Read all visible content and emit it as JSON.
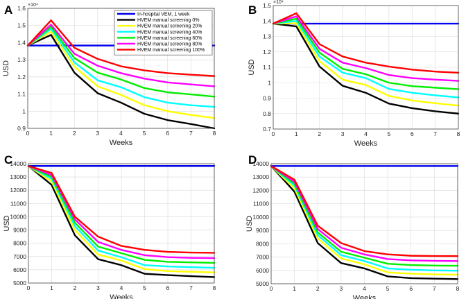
{
  "chart_data": [
    {
      "type": "line",
      "panel": "A",
      "xlabel": "Weeks",
      "ylabel": "USD",
      "exponent_label": "×10⁴",
      "x": [
        0,
        1,
        2,
        3,
        4,
        5,
        6,
        7,
        8
      ],
      "xlim": [
        0,
        8
      ],
      "xticks": [
        "0",
        "1",
        "2",
        "3",
        "4",
        "5",
        "6",
        "7",
        "8"
      ],
      "ylim": [
        0.9,
        1.6
      ],
      "yticks": [
        0.9,
        1,
        1.1,
        1.2,
        1.3,
        1.4,
        1.5,
        1.6
      ],
      "ytick_labels": [
        "0.9",
        "1",
        "1.1",
        "1.2",
        "1.3",
        "1.4",
        "1.5",
        "1.6"
      ],
      "legend": "top-right",
      "series": [
        {
          "name": "In-hospital VEM, 1 week",
          "color": "#0000ee",
          "values": [
            1.383,
            1.383,
            1.383,
            1.383,
            1.383,
            1.383,
            1.383,
            1.383,
            1.383
          ]
        },
        {
          "name": "HVEM manual screening 0%",
          "color": "#000000",
          "values": [
            1.383,
            1.445,
            1.225,
            1.105,
            1.05,
            0.985,
            0.948,
            0.925,
            0.9
          ]
        },
        {
          "name": "HVEM manual screening 20%",
          "color": "#ffff00",
          "values": [
            1.383,
            1.465,
            1.26,
            1.145,
            1.095,
            1.035,
            1.0,
            0.978,
            0.96
          ]
        },
        {
          "name": "HVEM manual screening 40%",
          "color": "#00ffff",
          "values": [
            1.383,
            1.48,
            1.285,
            1.18,
            1.14,
            1.082,
            1.05,
            1.035,
            1.025
          ]
        },
        {
          "name": "HVEM manual screening 60%",
          "color": "#00ee00",
          "values": [
            1.383,
            1.492,
            1.31,
            1.225,
            1.185,
            1.135,
            1.11,
            1.098,
            1.085
          ]
        },
        {
          "name": "HVEM manual screening 80%",
          "color": "#ff00ff",
          "values": [
            1.383,
            1.505,
            1.335,
            1.265,
            1.222,
            1.19,
            1.168,
            1.156,
            1.145
          ]
        },
        {
          "name": "HVEM manual screening 100%",
          "color": "#ff0000",
          "values": [
            1.383,
            1.53,
            1.37,
            1.305,
            1.262,
            1.238,
            1.222,
            1.213,
            1.205
          ]
        }
      ]
    },
    {
      "type": "line",
      "panel": "B",
      "xlabel": "Weeks",
      "ylabel": "USD",
      "exponent_label": "×10⁴",
      "x": [
        0,
        1,
        2,
        3,
        4,
        5,
        6,
        7,
        8
      ],
      "xlim": [
        0,
        8
      ],
      "xticks": [
        "0",
        "1",
        "2",
        "3",
        "4",
        "5",
        "6",
        "7",
        "8"
      ],
      "ylim": [
        0.7,
        1.5
      ],
      "yticks": [
        0.7,
        0.8,
        0.9,
        1,
        1.1,
        1.2,
        1.3,
        1.4,
        1.5
      ],
      "ytick_labels": [
        "0.7",
        "0.8",
        "0.9",
        "1",
        "1.1",
        "1.2",
        "1.3",
        "1.4",
        "1.5"
      ],
      "series": [
        {
          "name": "In-hospital VEM, 1 week",
          "color": "#0000ee",
          "values": [
            1.383,
            1.383,
            1.383,
            1.383,
            1.383,
            1.383,
            1.383,
            1.383,
            1.383
          ]
        },
        {
          "name": "HVEM manual screening 0%",
          "color": "#000000",
          "values": [
            1.383,
            1.365,
            1.105,
            0.98,
            0.935,
            0.865,
            0.835,
            0.815,
            0.8
          ]
        },
        {
          "name": "HVEM manual screening 20%",
          "color": "#ffff00",
          "values": [
            1.383,
            1.385,
            1.14,
            1.02,
            0.985,
            0.915,
            0.885,
            0.867,
            0.852
          ]
        },
        {
          "name": "HVEM manual screening 40%",
          "color": "#00ffff",
          "values": [
            1.383,
            1.4,
            1.17,
            1.065,
            1.03,
            0.96,
            0.935,
            0.918,
            0.905
          ]
        },
        {
          "name": "HVEM manual screening 60%",
          "color": "#00ee00",
          "values": [
            1.383,
            1.415,
            1.195,
            1.09,
            1.055,
            1.0,
            0.978,
            0.968,
            0.958
          ]
        },
        {
          "name": "HVEM manual screening 80%",
          "color": "#ff00ff",
          "values": [
            1.383,
            1.43,
            1.22,
            1.13,
            1.095,
            1.05,
            1.03,
            1.02,
            1.012
          ]
        },
        {
          "name": "HVEM manual screening 100%",
          "color": "#ff0000",
          "values": [
            1.383,
            1.45,
            1.25,
            1.17,
            1.13,
            1.105,
            1.085,
            1.072,
            1.065
          ]
        }
      ]
    },
    {
      "type": "line",
      "panel": "C",
      "xlabel": "Weeks",
      "ylabel": "USD",
      "x": [
        0,
        1,
        2,
        3,
        4,
        5,
        6,
        7,
        8
      ],
      "xlim": [
        0,
        8
      ],
      "xticks": [
        "0",
        "1",
        "2",
        "3",
        "4",
        "5",
        "6",
        "7",
        "8"
      ],
      "ylim": [
        5000,
        14000
      ],
      "yticks": [
        5000,
        6000,
        7000,
        8000,
        9000,
        10000,
        11000,
        12000,
        13000,
        14000
      ],
      "ytick_labels": [
        "5000",
        "6000",
        "7000",
        "8000",
        "9000",
        "10000",
        "11000",
        "12000",
        "13000",
        "14000"
      ],
      "series": [
        {
          "name": "In-hospital VEM, 1 week",
          "color": "#0000ee",
          "values": [
            13830,
            13830,
            13830,
            13830,
            13830,
            13830,
            13830,
            13830,
            13830
          ]
        },
        {
          "name": "HVEM manual screening 0%",
          "color": "#000000",
          "values": [
            13830,
            12400,
            8600,
            6800,
            6350,
            5700,
            5600,
            5520,
            5450
          ]
        },
        {
          "name": "HVEM manual screening 20%",
          "color": "#ffff00",
          "values": [
            13830,
            12650,
            9000,
            7150,
            6700,
            6050,
            5900,
            5850,
            5800
          ]
        },
        {
          "name": "HVEM manual screening 40%",
          "color": "#00ffff",
          "values": [
            13830,
            12850,
            9300,
            7450,
            6950,
            6350,
            6250,
            6200,
            6150
          ]
        },
        {
          "name": "HVEM manual screening 60%",
          "color": "#00ee00",
          "values": [
            13830,
            13000,
            9550,
            7750,
            7250,
            6750,
            6600,
            6560,
            6520
          ]
        },
        {
          "name": "HVEM manual screening 80%",
          "color": "#ff00ff",
          "values": [
            13830,
            13150,
            9800,
            8100,
            7500,
            7100,
            6950,
            6900,
            6880
          ]
        },
        {
          "name": "HVEM manual screening 100%",
          "color": "#ff0000",
          "values": [
            13830,
            13300,
            10000,
            8500,
            7800,
            7500,
            7350,
            7300,
            7280
          ]
        }
      ]
    },
    {
      "type": "line",
      "panel": "D",
      "xlabel": "Weeks",
      "ylabel": "USD",
      "x": [
        0,
        1,
        2,
        3,
        4,
        5,
        6,
        7,
        8
      ],
      "xlim": [
        0,
        8
      ],
      "xticks": [
        "0",
        "1",
        "2",
        "3",
        "4",
        "5",
        "6",
        "7",
        "8"
      ],
      "ylim": [
        5000,
        14000
      ],
      "yticks": [
        5000,
        6000,
        7000,
        8000,
        9000,
        10000,
        11000,
        12000,
        13000,
        14000
      ],
      "ytick_labels": [
        "5000",
        "6000",
        "7000",
        "8000",
        "9000",
        "10000",
        "11000",
        "12000",
        "13000",
        "14000"
      ],
      "series": [
        {
          "name": "In-hospital VEM, 1 week",
          "color": "#0000ee",
          "values": [
            13830,
            13830,
            13830,
            13830,
            13830,
            13830,
            13830,
            13830,
            13830
          ]
        },
        {
          "name": "HVEM manual screening 0%",
          "color": "#000000",
          "values": [
            13830,
            11900,
            8050,
            6550,
            6150,
            5550,
            5420,
            5380,
            5350
          ]
        },
        {
          "name": "HVEM manual screening 20%",
          "color": "#ffff00",
          "values": [
            13830,
            12150,
            8400,
            6900,
            6450,
            5850,
            5750,
            5700,
            5680
          ]
        },
        {
          "name": "HVEM manual screening 40%",
          "color": "#00ffff",
          "values": [
            13830,
            12350,
            8650,
            7150,
            6700,
            6150,
            6050,
            6000,
            5980
          ]
        },
        {
          "name": "HVEM manual screening 60%",
          "color": "#00ee00",
          "values": [
            13830,
            12500,
            8850,
            7400,
            6950,
            6500,
            6400,
            6360,
            6350
          ]
        },
        {
          "name": "HVEM manual screening 80%",
          "color": "#ff00ff",
          "values": [
            13830,
            12650,
            9100,
            7700,
            7200,
            6850,
            6750,
            6720,
            6700
          ]
        },
        {
          "name": "HVEM manual screening 100%",
          "color": "#ff0000",
          "values": [
            13830,
            12800,
            9350,
            8050,
            7450,
            7200,
            7100,
            7080,
            7070
          ]
        }
      ]
    }
  ]
}
